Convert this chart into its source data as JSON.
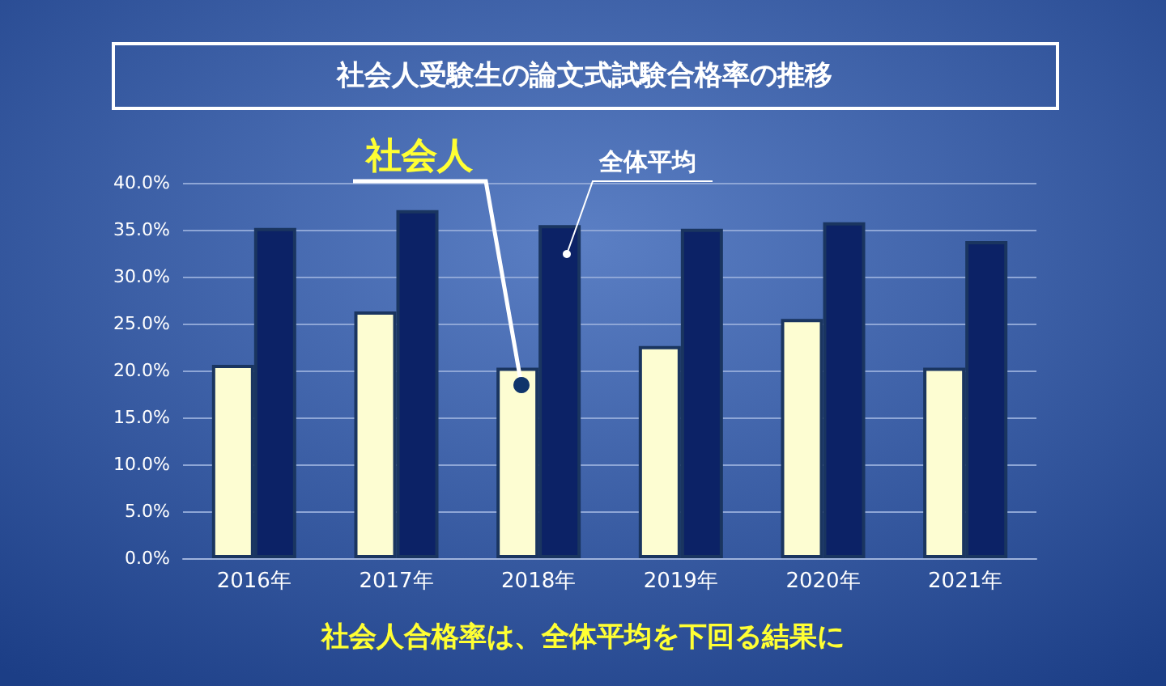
{
  "chart_data": {
    "type": "bar",
    "title": "社会人受験生の論文式試験合格率の推移",
    "categories": [
      "2016年",
      "2017年",
      "2018年",
      "2019年",
      "2020年",
      "2021年"
    ],
    "series": [
      {
        "name": "社会人",
        "color": "#fdfdd2",
        "values": [
          20.6,
          26.3,
          20.3,
          22.6,
          25.5,
          20.3
        ]
      },
      {
        "name": "全体平均",
        "color": "#0c2266",
        "values": [
          35.2,
          37.1,
          35.5,
          35.1,
          35.8,
          33.8
        ]
      }
    ],
    "ylim": [
      0,
      40
    ],
    "yticks": [
      {
        "value": 0,
        "label": "0.0%"
      },
      {
        "value": 5,
        "label": "5.0%"
      },
      {
        "value": 10,
        "label": "10.0%"
      },
      {
        "value": 15,
        "label": "15.0%"
      },
      {
        "value": 20,
        "label": "20.0%"
      },
      {
        "value": 25,
        "label": "25.0%"
      },
      {
        "value": 30,
        "label": "30.0%"
      },
      {
        "value": 35,
        "label": "35.0%"
      },
      {
        "value": 40,
        "label": "40.0%"
      }
    ],
    "grid": "y",
    "legend": false,
    "annotations": [
      "社会人合格率は、全体平均を下回る結果に"
    ]
  }
}
